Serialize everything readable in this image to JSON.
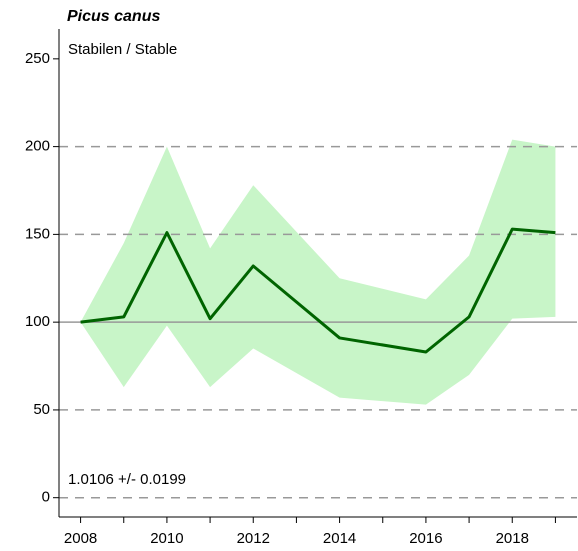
{
  "chart_data": {
    "type": "line",
    "title": "Picus canus",
    "subtitle": "Stabilen / Stable",
    "annotation": "1.0106 +/- 0.0199",
    "x": [
      2008,
      2009,
      2010,
      2011,
      2012,
      2014,
      2016,
      2017,
      2018,
      2019
    ],
    "series": [
      {
        "color": "#006400",
        "values": [
          100,
          103,
          151,
          102,
          132,
          91,
          83,
          103,
          153,
          151
        ]
      }
    ],
    "band": {
      "color": "#c8f5c8",
      "upper": [
        100,
        145,
        200,
        142,
        178,
        125,
        113,
        138,
        204,
        200
      ],
      "lower": [
        100,
        63,
        98,
        63,
        85,
        57,
        53,
        70,
        102,
        103
      ]
    },
    "xlim": [
      2007.5,
      2019.5
    ],
    "xticks": [
      2008,
      2010,
      2012,
      2014,
      2016,
      2018
    ],
    "xminorticks": [
      2009,
      2011,
      2013,
      2015,
      2017,
      2019
    ],
    "ylim": [
      -11,
      267
    ],
    "yticks": [
      0,
      50,
      100,
      150,
      200,
      250
    ],
    "grid_lines": [
      0,
      50,
      150,
      200
    ],
    "reference_line": 100
  }
}
